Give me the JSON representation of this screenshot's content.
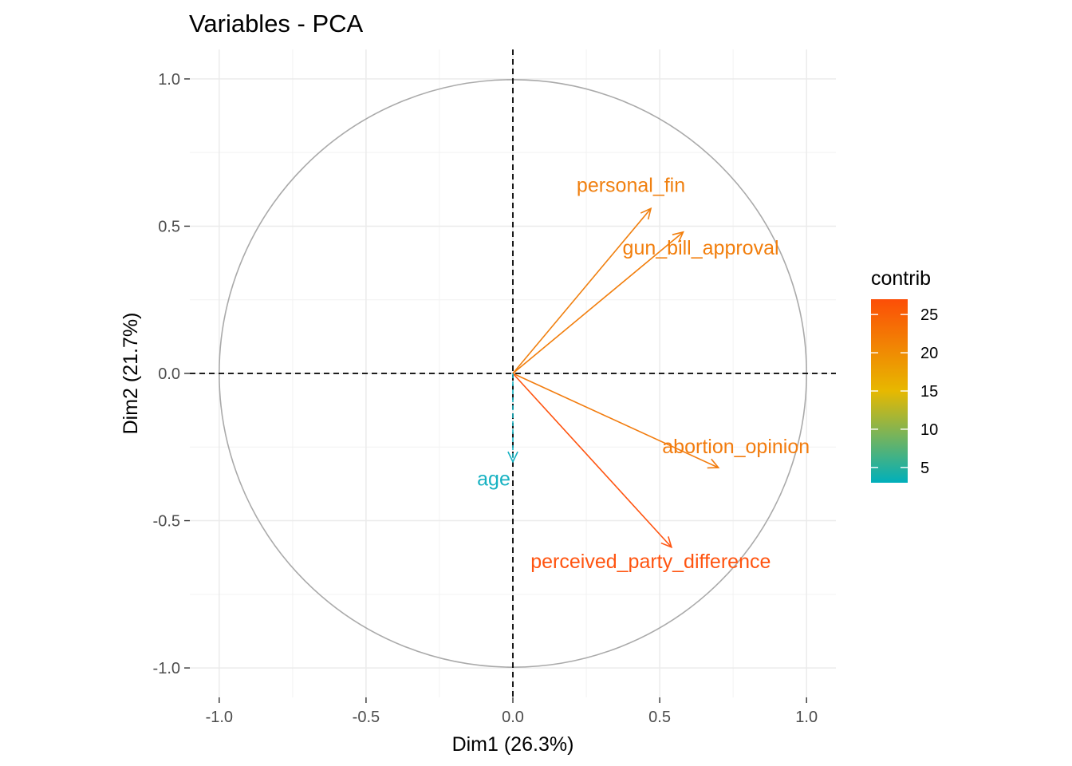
{
  "chart_data": {
    "type": "scatter",
    "subtype": "pca-variable-correlation-circle",
    "title": "Variables - PCA",
    "xlabel": "Dim1 (26.3%)",
    "ylabel": "Dim2 (21.7%)",
    "xlim": [
      -1.1,
      1.1
    ],
    "ylim": [
      -1.1,
      1.1
    ],
    "x_ticks": [
      -1.0,
      -0.5,
      0.0,
      0.5,
      1.0
    ],
    "y_ticks": [
      -1.0,
      -0.5,
      0.0,
      0.5,
      1.0
    ],
    "x_tick_labels": [
      "-1.0",
      "-0.5",
      "0.0",
      "0.5",
      "1.0"
    ],
    "y_tick_labels": [
      "-1.0",
      "-0.5",
      "0.0",
      "0.5",
      "1.0"
    ],
    "grid": true,
    "unit_circle": true,
    "reference_lines": {
      "x": 0,
      "y": 0,
      "style": "dashed"
    },
    "variables": [
      {
        "name": "personal_fin",
        "x": 0.47,
        "y": 0.56,
        "contrib": 20.5,
        "color": "#F08010"
      },
      {
        "name": "gun_bill_approval",
        "x": 0.58,
        "y": 0.48,
        "contrib": 22.5,
        "color": "#F27E0C"
      },
      {
        "name": "abortion_opinion",
        "x": 0.7,
        "y": -0.32,
        "contrib": 22.0,
        "color": "#F27C0E"
      },
      {
        "name": "perceived_party_difference",
        "x": 0.54,
        "y": -0.59,
        "contrib": 26.5,
        "color": "#FF5410"
      },
      {
        "name": "age",
        "x": 0.0,
        "y": -0.3,
        "contrib": 3.0,
        "color": "#17B2C2"
      }
    ],
    "legend": {
      "title": "contrib",
      "position": "right",
      "type": "gradient",
      "range": [
        3,
        27
      ],
      "ticks": [
        5,
        10,
        15,
        20,
        25
      ],
      "tick_labels": [
        "5",
        "10",
        "15",
        "20",
        "25"
      ],
      "colors": [
        "#00AFBB",
        "#E7B800",
        "#FC4E07"
      ]
    }
  }
}
